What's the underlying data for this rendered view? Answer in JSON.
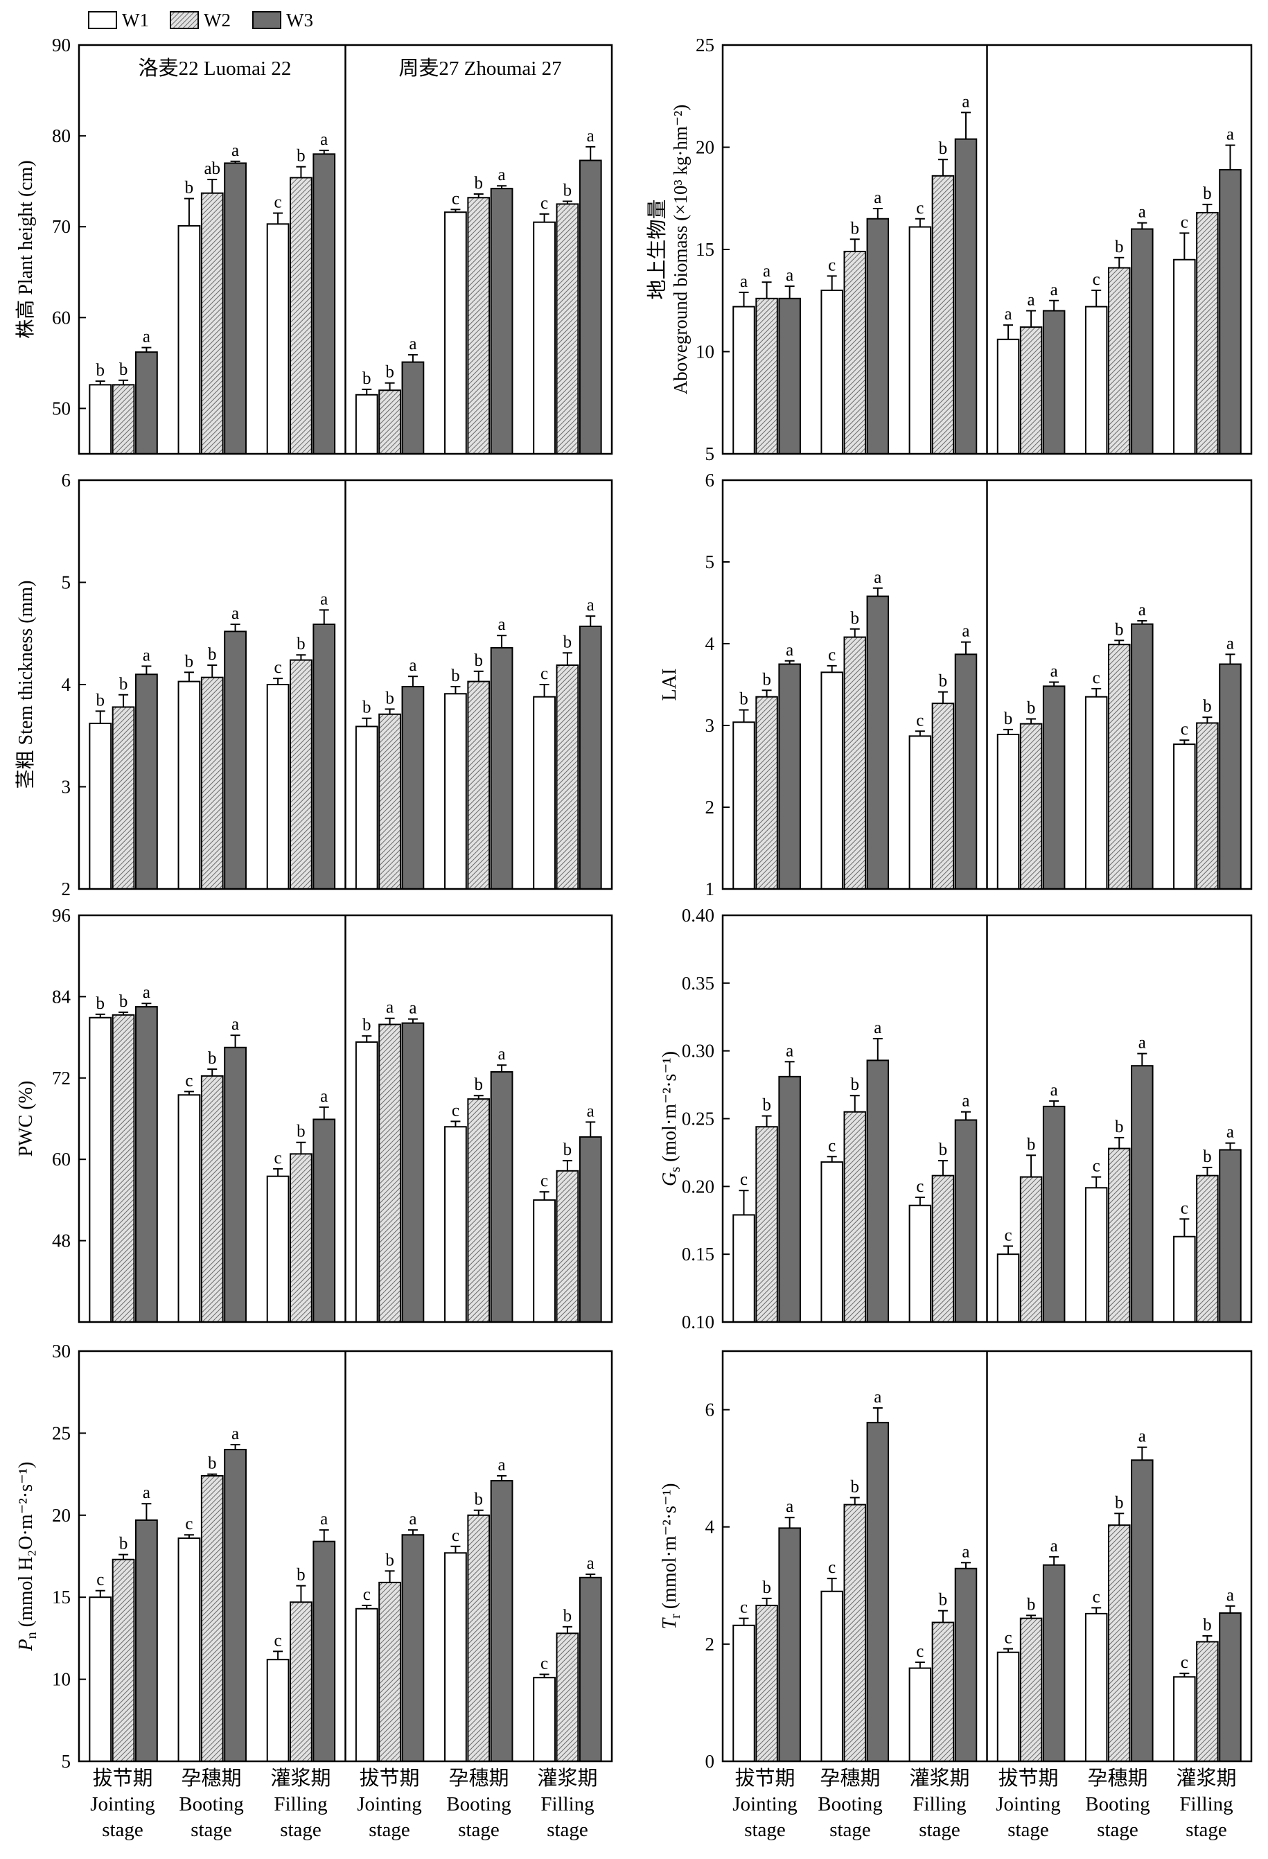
{
  "legend": [
    {
      "label": "W1",
      "color": "#ffffff",
      "pattern": "none"
    },
    {
      "label": "W2",
      "color": "#bdbdbd",
      "pattern": "hatch"
    },
    {
      "label": "W3",
      "color": "#6e6e6e",
      "pattern": "none"
    }
  ],
  "cultivars": [
    "洛麦22  Luomai 22",
    "周麦27  Zhoumai 27"
  ],
  "stages": [
    {
      "zh": "拔节期",
      "en1": "Jointing",
      "en2": "stage"
    },
    {
      "zh": "孕穗期",
      "en1": "Booting",
      "en2": "stage"
    },
    {
      "zh": "灌浆期",
      "en1": "Filling",
      "en2": "stage"
    },
    {
      "zh": "拔节期",
      "en1": "Jointing",
      "en2": "stage"
    },
    {
      "zh": "孕穗期",
      "en1": "Booting",
      "en2": "stage"
    },
    {
      "zh": "灌浆期",
      "en1": "Filling",
      "en2": "stage"
    }
  ],
  "chart_data": [
    {
      "type": "bar",
      "ylabel": "株高 Plant height (cm)",
      "ylim": [
        45,
        90
      ],
      "yticks": [
        50,
        60,
        70,
        80,
        90
      ],
      "groups": 6,
      "values": [
        [
          52.6,
          52.6,
          56.2
        ],
        [
          70.1,
          73.7,
          77.0
        ],
        [
          70.3,
          75.4,
          78.0
        ],
        [
          51.5,
          52.0,
          55.1
        ],
        [
          71.6,
          73.2,
          74.2
        ],
        [
          70.5,
          72.5,
          77.3
        ]
      ],
      "errors": [
        [
          0.4,
          0.5,
          0.5
        ],
        [
          3.0,
          1.5,
          0.2
        ],
        [
          1.2,
          1.2,
          0.4
        ],
        [
          0.6,
          0.8,
          0.8
        ],
        [
          0.3,
          0.4,
          0.3
        ],
        [
          0.9,
          0.3,
          1.5
        ]
      ],
      "sig": [
        [
          "b",
          "b",
          "a"
        ],
        [
          "b",
          "ab",
          "a"
        ],
        [
          "c",
          "b",
          "a"
        ],
        [
          "b",
          "b",
          "a"
        ],
        [
          "c",
          "b",
          "a"
        ],
        [
          "c",
          "b",
          "a"
        ]
      ]
    },
    {
      "type": "bar",
      "ylabel_line1": "地上生物量",
      "ylabel_line2": "Aboveground biomass (×10³ kg·hm⁻²)",
      "ylim": [
        5,
        25
      ],
      "yticks": [
        5,
        10,
        15,
        20,
        25
      ],
      "groups": 6,
      "values": [
        [
          12.2,
          12.6,
          12.6
        ],
        [
          13.0,
          14.9,
          16.5
        ],
        [
          16.1,
          18.6,
          20.4
        ],
        [
          10.6,
          11.2,
          12.0
        ],
        [
          12.2,
          14.1,
          16.0
        ],
        [
          14.5,
          16.8,
          18.9
        ]
      ],
      "errors": [
        [
          0.7,
          0.8,
          0.6
        ],
        [
          0.7,
          0.6,
          0.5
        ],
        [
          0.4,
          0.8,
          1.3
        ],
        [
          0.7,
          0.8,
          0.5
        ],
        [
          0.8,
          0.5,
          0.3
        ],
        [
          1.3,
          0.4,
          1.2
        ]
      ],
      "sig": [
        [
          "a",
          "a",
          "a"
        ],
        [
          "c",
          "b",
          "a"
        ],
        [
          "c",
          "b",
          "a"
        ],
        [
          "a",
          "a",
          "a"
        ],
        [
          "c",
          "b",
          "a"
        ],
        [
          "c",
          "b",
          "a"
        ]
      ]
    },
    {
      "type": "bar",
      "ylabel": "茎粗 Stem thickness (mm)",
      "ylim": [
        2,
        6
      ],
      "yticks": [
        2,
        3,
        4,
        5,
        6
      ],
      "groups": 6,
      "values": [
        [
          3.62,
          3.78,
          4.1
        ],
        [
          4.03,
          4.07,
          4.52
        ],
        [
          4.0,
          4.24,
          4.59
        ],
        [
          3.59,
          3.71,
          3.98
        ],
        [
          3.91,
          4.03,
          4.36
        ],
        [
          3.88,
          4.19,
          4.57
        ]
      ],
      "errors": [
        [
          0.12,
          0.12,
          0.08
        ],
        [
          0.09,
          0.12,
          0.07
        ],
        [
          0.06,
          0.05,
          0.14
        ],
        [
          0.08,
          0.05,
          0.1
        ],
        [
          0.07,
          0.1,
          0.12
        ],
        [
          0.12,
          0.12,
          0.1
        ]
      ],
      "sig": [
        [
          "b",
          "b",
          "a"
        ],
        [
          "b",
          "b",
          "a"
        ],
        [
          "c",
          "b",
          "a"
        ],
        [
          "b",
          "b",
          "a"
        ],
        [
          "b",
          "b",
          "a"
        ],
        [
          "c",
          "b",
          "a"
        ]
      ]
    },
    {
      "type": "bar",
      "ylabel": "LAI",
      "ylim": [
        1,
        6
      ],
      "yticks": [
        1,
        2,
        3,
        4,
        5,
        6
      ],
      "groups": 6,
      "values": [
        [
          3.04,
          3.35,
          3.75
        ],
        [
          3.65,
          4.08,
          4.58
        ],
        [
          2.87,
          3.27,
          3.87
        ],
        [
          2.89,
          3.02,
          3.48
        ],
        [
          3.35,
          3.99,
          4.24
        ],
        [
          2.77,
          3.03,
          3.75
        ]
      ],
      "errors": [
        [
          0.15,
          0.08,
          0.04
        ],
        [
          0.08,
          0.1,
          0.1
        ],
        [
          0.06,
          0.14,
          0.15
        ],
        [
          0.06,
          0.06,
          0.05
        ],
        [
          0.1,
          0.05,
          0.04
        ],
        [
          0.05,
          0.07,
          0.12
        ]
      ],
      "sig": [
        [
          "b",
          "b",
          "a"
        ],
        [
          "c",
          "b",
          "a"
        ],
        [
          "c",
          "b",
          "a"
        ],
        [
          "b",
          "b",
          "a"
        ],
        [
          "c",
          "b",
          "a"
        ],
        [
          "c",
          "b",
          "a"
        ]
      ]
    },
    {
      "type": "bar",
      "ylabel": "PWC (%)",
      "ylim": [
        36,
        96
      ],
      "yticks": [
        48,
        60,
        72,
        84,
        96
      ],
      "groups": 6,
      "values": [
        [
          80.9,
          81.3,
          82.5
        ],
        [
          69.5,
          72.3,
          76.5
        ],
        [
          57.5,
          60.8,
          65.9
        ],
        [
          77.3,
          79.9,
          80.1
        ],
        [
          64.8,
          68.9,
          72.9
        ],
        [
          54.0,
          58.3,
          63.3
        ]
      ],
      "errors": [
        [
          0.5,
          0.4,
          0.5
        ],
        [
          0.5,
          1.0,
          1.8
        ],
        [
          1.1,
          1.7,
          1.8
        ],
        [
          0.9,
          0.9,
          0.6
        ],
        [
          0.8,
          0.5,
          1.0
        ],
        [
          1.2,
          1.5,
          2.2
        ]
      ],
      "sig": [
        [
          "b",
          "b",
          "a"
        ],
        [
          "c",
          "b",
          "a"
        ],
        [
          "c",
          "b",
          "a"
        ],
        [
          "b",
          "a",
          "a"
        ],
        [
          "c",
          "b",
          "a"
        ],
        [
          "c",
          "b",
          "a"
        ]
      ]
    },
    {
      "type": "bar",
      "ylabel": "Gs (mol·m⁻²·s⁻¹)",
      "ylabel_main": "G",
      "ylabel_sub": "s",
      "ylabel_rest": " (mol·m⁻²·s⁻¹)",
      "ylim": [
        0.1,
        0.4
      ],
      "yticks": [
        0.1,
        0.15,
        0.2,
        0.25,
        0.3,
        0.35,
        0.4
      ],
      "decimals": 2,
      "groups": 6,
      "values": [
        [
          0.179,
          0.244,
          0.281
        ],
        [
          0.218,
          0.255,
          0.293
        ],
        [
          0.186,
          0.208,
          0.249
        ],
        [
          0.15,
          0.207,
          0.259
        ],
        [
          0.199,
          0.228,
          0.289
        ],
        [
          0.163,
          0.208,
          0.227
        ]
      ],
      "errors": [
        [
          0.018,
          0.008,
          0.011
        ],
        [
          0.004,
          0.012,
          0.016
        ],
        [
          0.006,
          0.011,
          0.006
        ],
        [
          0.006,
          0.016,
          0.004
        ],
        [
          0.008,
          0.008,
          0.009
        ],
        [
          0.013,
          0.006,
          0.005
        ]
      ],
      "sig": [
        [
          "c",
          "b",
          "a"
        ],
        [
          "c",
          "b",
          "a"
        ],
        [
          "c",
          "b",
          "a"
        ],
        [
          "c",
          "b",
          "a"
        ],
        [
          "c",
          "b",
          "a"
        ],
        [
          "c",
          "b",
          "a"
        ]
      ]
    },
    {
      "type": "bar",
      "ylabel": "Pn (mmol H₂O·m⁻²·s⁻¹)",
      "ylabel_main": "P",
      "ylabel_sub": "n",
      "ylabel_rest": " (mmol H₂O·m⁻²·s⁻¹)",
      "ylim": [
        5,
        30
      ],
      "yticks": [
        5,
        10,
        15,
        20,
        25,
        30
      ],
      "groups": 6,
      "values": [
        [
          15.0,
          17.3,
          19.7
        ],
        [
          18.6,
          22.4,
          24.0
        ],
        [
          11.2,
          14.7,
          18.4
        ],
        [
          14.3,
          15.9,
          18.8
        ],
        [
          17.7,
          20.0,
          22.1
        ],
        [
          10.1,
          12.8,
          16.2
        ]
      ],
      "errors": [
        [
          0.4,
          0.3,
          1.0
        ],
        [
          0.2,
          0.1,
          0.3
        ],
        [
          0.5,
          1.0,
          0.7
        ],
        [
          0.2,
          0.7,
          0.3
        ],
        [
          0.4,
          0.3,
          0.3
        ],
        [
          0.2,
          0.4,
          0.2
        ]
      ],
      "sig": [
        [
          "c",
          "b",
          "a"
        ],
        [
          "c",
          "b",
          "a"
        ],
        [
          "c",
          "b",
          "a"
        ],
        [
          "c",
          "b",
          "a"
        ],
        [
          "c",
          "b",
          "a"
        ],
        [
          "c",
          "b",
          "a"
        ]
      ]
    },
    {
      "type": "bar",
      "ylabel": "Tr (mmol·m⁻²·s⁻¹)",
      "ylabel_main": "T",
      "ylabel_sub": "r",
      "ylabel_rest": " (mmol·m⁻²·s⁻¹)",
      "ylim": [
        0,
        7
      ],
      "yticks": [
        0,
        2,
        4,
        6
      ],
      "groups": 6,
      "values": [
        [
          2.32,
          2.66,
          3.98
        ],
        [
          2.9,
          4.38,
          5.78
        ],
        [
          1.59,
          2.37,
          3.29
        ],
        [
          1.86,
          2.44,
          3.35
        ],
        [
          2.52,
          4.03,
          5.14
        ],
        [
          1.44,
          2.04,
          2.53
        ]
      ],
      "errors": [
        [
          0.12,
          0.12,
          0.18
        ],
        [
          0.22,
          0.12,
          0.25
        ],
        [
          0.1,
          0.2,
          0.1
        ],
        [
          0.06,
          0.05,
          0.14
        ],
        [
          0.1,
          0.2,
          0.22
        ],
        [
          0.06,
          0.1,
          0.12
        ]
      ],
      "sig": [
        [
          "c",
          "b",
          "a"
        ],
        [
          "c",
          "b",
          "a"
        ],
        [
          "c",
          "b",
          "a"
        ],
        [
          "c",
          "b",
          "a"
        ],
        [
          "c",
          "b",
          "a"
        ],
        [
          "c",
          "b",
          "a"
        ]
      ]
    }
  ]
}
